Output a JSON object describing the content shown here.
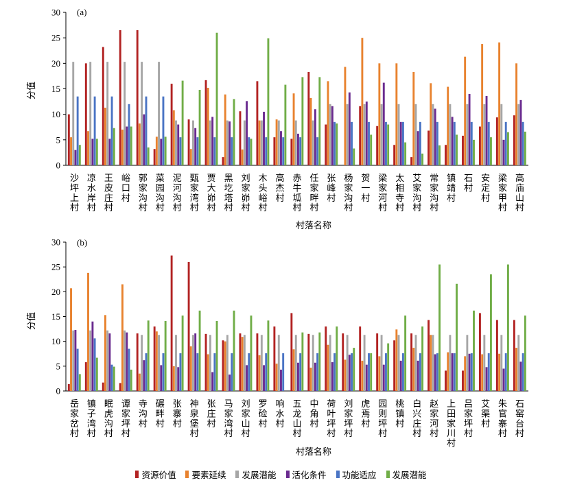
{
  "chart_data": [
    {
      "type": "bar",
      "panel_label": "(a)",
      "ylabel": "分值",
      "xlabel": "村落名称",
      "ylim": [
        0,
        30
      ],
      "yticks": [
        0,
        5,
        10,
        15,
        20,
        25,
        30
      ],
      "categories": [
        "沙坪上村",
        "凉水岸村",
        "王皮庄村",
        "峪口村",
        "郭家沟村",
        "菜园沟村",
        "泥河沟村",
        "甄家湾村",
        "贾大峁村",
        "黑圪塔村",
        "刘家峁村",
        "木头峪村",
        "高杰村",
        "赤牛坬村",
        "任家畔村",
        "张峰村",
        "杨家沟村",
        "贺一村",
        "梁家河村",
        "太相寺村",
        "艾家沟村",
        "常家沟村",
        "镇靖村",
        "石村",
        "安定村",
        "梁家甲村",
        "高庙山村"
      ],
      "series": [
        {
          "name": "资源价值",
          "color": "#b22222",
          "values": [
            10,
            20,
            23.2,
            26.5,
            26.5,
            3.2,
            16,
            9,
            16.7,
            1.6,
            10.6,
            16.5,
            5.5,
            5.2,
            18.3,
            8,
            0,
            11.6,
            7.7,
            4,
            1.6,
            6.8,
            4,
            5.8,
            7.6,
            9.4,
            9.8
          ]
        },
        {
          "name": "要素延续",
          "color": "#e8822e",
          "values": [
            5.5,
            6.7,
            11.3,
            7,
            8.2,
            5.6,
            10.8,
            3.2,
            15.2,
            13.9,
            3.1,
            8.8,
            9,
            14.1,
            13.2,
            16.5,
            19.3,
            25,
            20,
            20,
            18.3,
            16.1,
            15.4,
            21.3,
            23.8,
            24.1,
            20
          ]
        },
        {
          "name": "发展潜能",
          "color": "#a6a6a6",
          "values": [
            20.3,
            20.3,
            20.3,
            20.3,
            20.3,
            20.3,
            8.8,
            8.8,
            8.8,
            8.8,
            8.8,
            8.8,
            8.8,
            8.8,
            8.8,
            12,
            12,
            12,
            12,
            12,
            12,
            12,
            12,
            12,
            12,
            12,
            12
          ]
        },
        {
          "name": "活化条件",
          "color": "#6a2b8f",
          "values": [
            3,
            5.2,
            5.2,
            7.6,
            10,
            5.2,
            8,
            7.3,
            9.5,
            8.6,
            12.6,
            10.5,
            6.7,
            6.2,
            11,
            11.6,
            14.3,
            12.5,
            16.2,
            8.5,
            6.7,
            11.1,
            9.5,
            14,
            13.6,
            5,
            12.8
          ]
        },
        {
          "name": "功能适应",
          "color": "#4a74c4",
          "values": [
            13.5,
            13.5,
            13.5,
            12,
            13.5,
            13.5,
            5.5,
            5.5,
            5.5,
            5.5,
            5.5,
            5.5,
            5.5,
            5.5,
            5.5,
            8.5,
            8.5,
            8.5,
            8.5,
            8.5,
            8.5,
            8.5,
            8.5,
            8.5,
            8.5,
            8.5,
            8.5
          ]
        },
        {
          "name": "发展潜能",
          "color": "#70ad47",
          "values": [
            4,
            5.2,
            7.3,
            7.6,
            3.5,
            5.6,
            16.6,
            14.8,
            26,
            13,
            5.2,
            24.9,
            15.8,
            17.3,
            17.3,
            8.2,
            3.3,
            6,
            8,
            4.5,
            2.3,
            3.9,
            6,
            5,
            5.5,
            6.5,
            6.6
          ]
        }
      ]
    },
    {
      "type": "bar",
      "panel_label": "(b)",
      "ylabel": "分值",
      "xlabel": "村落名称",
      "ylim": [
        0,
        30
      ],
      "yticks": [
        0,
        5,
        10,
        15,
        20,
        25,
        30
      ],
      "categories": [
        "岳家岔村",
        "镇子湾村",
        "眠虎沟村",
        "谭家坪村",
        "寺沟村",
        "碾畔村",
        "张寨村",
        "神泉堡村",
        "张庄村",
        "马家湾村",
        "刘家山村",
        "罗硷村",
        "响水村",
        "五龙山村",
        "中角村",
        "荷叶坪村",
        "刘家坪村",
        "虎焉村",
        "园则坪村",
        "桃镇村",
        "白兴庄村",
        "赵家河村",
        "上田家川村",
        "吕家坪村",
        "艾渠村",
        "朱官寨村",
        "石窑台村"
      ],
      "series": [
        {
          "name": "资源价值",
          "color": "#b22222",
          "values": [
            1.4,
            5.8,
            1.7,
            1.6,
            11.6,
            13,
            27.3,
            26,
            11.5,
            10.2,
            11.6,
            11.6,
            13,
            15.7,
            11.5,
            13,
            11.6,
            13,
            11.6,
            10.2,
            11.6,
            14.3,
            4.1,
            4.1,
            15.7,
            14.3,
            14.3
          ]
        },
        {
          "name": "要素延续",
          "color": "#e8822e",
          "values": [
            20.7,
            23.8,
            15.3,
            21.5,
            3.5,
            12,
            5,
            9,
            7.4,
            10,
            10.9,
            7.2,
            5.5,
            8.4,
            4.7,
            9.3,
            6.3,
            6.1,
            7,
            12.4,
            8.7,
            11.3,
            7.8,
            7,
            7.4,
            7.5,
            8.7
          ]
        },
        {
          "name": "发展潜能",
          "color": "#a6a6a6",
          "values": [
            12.2,
            12.2,
            12.2,
            12.2,
            11.3,
            11.3,
            11.3,
            11.3,
            11.3,
            11.3,
            11.3,
            11.3,
            11.3,
            11.3,
            11.3,
            11.3,
            11.3,
            11.3,
            11.3,
            11.3,
            11.3,
            11.3,
            11.3,
            11.3,
            11.3,
            11.3,
            11.3
          ]
        },
        {
          "name": "活化条件",
          "color": "#6a2b8f",
          "values": [
            12.3,
            14,
            11.6,
            11.8,
            6.2,
            5.2,
            4.8,
            11.6,
            3.8,
            3.3,
            5.2,
            5.2,
            4.3,
            5.7,
            5.7,
            5.8,
            7.3,
            5.3,
            5.3,
            6.1,
            6.1,
            7.4,
            7.6,
            7.5,
            4.8,
            4.5,
            5.9
          ]
        },
        {
          "name": "功能适应",
          "color": "#4a74c4",
          "values": [
            8.5,
            10.6,
            5.3,
            8.5,
            7.6,
            7.6,
            7.6,
            7.6,
            7.6,
            7.6,
            7.6,
            7.6,
            7.6,
            7.6,
            7.6,
            7.6,
            7.6,
            7.6,
            7.6,
            7.6,
            7.6,
            7.6,
            7.6,
            7.6,
            7.6,
            7.6,
            7.6
          ]
        },
        {
          "name": "发展潜能",
          "color": "#70ad47",
          "values": [
            3.4,
            6.7,
            4.9,
            4.3,
            14.2,
            14.1,
            15.2,
            16.2,
            14.1,
            16.2,
            15.2,
            14.2,
            0,
            11.8,
            11.8,
            13,
            8.7,
            7.6,
            9.6,
            15.2,
            13,
            25.5,
            21.6,
            16.2,
            23.5,
            25.5,
            15.2
          ]
        }
      ]
    }
  ],
  "legend": [
    {
      "label": "资源价值",
      "color": "#b22222"
    },
    {
      "label": "要素延续",
      "color": "#e8822e"
    },
    {
      "label": "发展潜能",
      "color": "#a6a6a6"
    },
    {
      "label": "活化条件",
      "color": "#6a2b8f"
    },
    {
      "label": "功能适应",
      "color": "#4a74c4"
    },
    {
      "label": "发展潜能",
      "color": "#70ad47"
    }
  ]
}
